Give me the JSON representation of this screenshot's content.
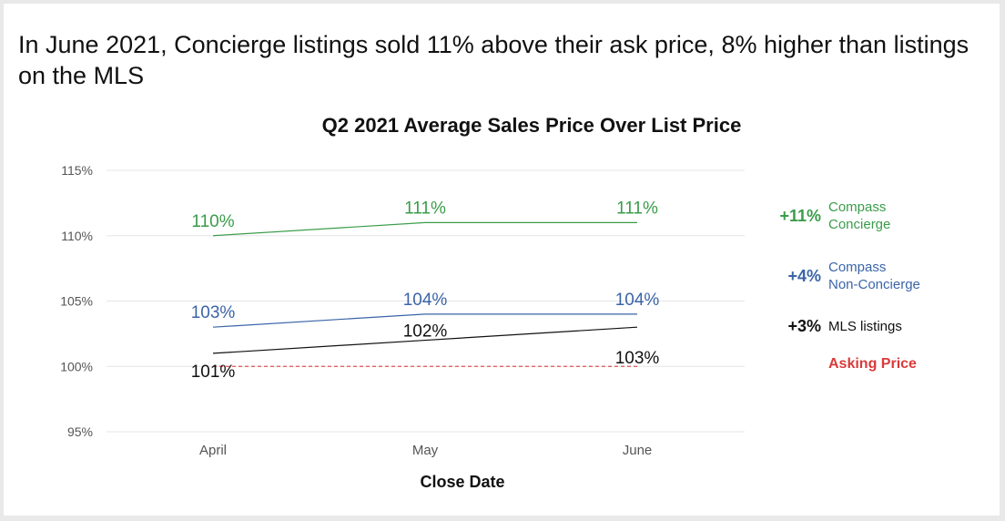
{
  "headline": "In June 2021, Concierge listings sold 11% above their ask price, 8% higher than listings on the MLS",
  "chart_data": {
    "type": "line",
    "title": "Q2 2021 Average Sales Price Over List Price",
    "xlabel": "Close Date",
    "ylabel": "",
    "categories": [
      "April",
      "May",
      "June"
    ],
    "ylim": [
      95,
      115
    ],
    "yticks": [
      95,
      100,
      105,
      110,
      115
    ],
    "ytick_labels": [
      "95%",
      "100%",
      "105%",
      "110%",
      "115%"
    ],
    "grid": true,
    "series": [
      {
        "name": "Compass Concierge",
        "color": "#3a9c4a",
        "values": [
          110,
          111,
          111
        ],
        "labels": [
          "110%",
          "111%",
          "111%"
        ]
      },
      {
        "name": "Compass Non-Concierge",
        "color": "#3b64a8",
        "values": [
          103,
          104,
          104
        ],
        "labels": [
          "103%",
          "104%",
          "104%"
        ]
      },
      {
        "name": "MLS listings",
        "color": "#111111",
        "values": [
          101,
          102,
          103
        ],
        "labels": [
          "101%",
          "102%",
          "103%"
        ]
      },
      {
        "name": "Asking Price",
        "color": "#e05555",
        "dashed": true,
        "values": [
          100,
          100,
          100
        ],
        "labels": []
      }
    ]
  },
  "legend": [
    {
      "delta": "+11%",
      "line1": "Compass",
      "line2": "Concierge",
      "color": "#3a9c4a"
    },
    {
      "delta": "+4%",
      "line1": "Compass",
      "line2": "Non-Concierge",
      "color": "#3b64a8"
    },
    {
      "delta": "+3%",
      "line1": "MLS listings",
      "line2": "",
      "color": "#111111"
    },
    {
      "delta": "",
      "line1": "Asking Price",
      "line2": "",
      "color": "#d93a3a"
    }
  ]
}
